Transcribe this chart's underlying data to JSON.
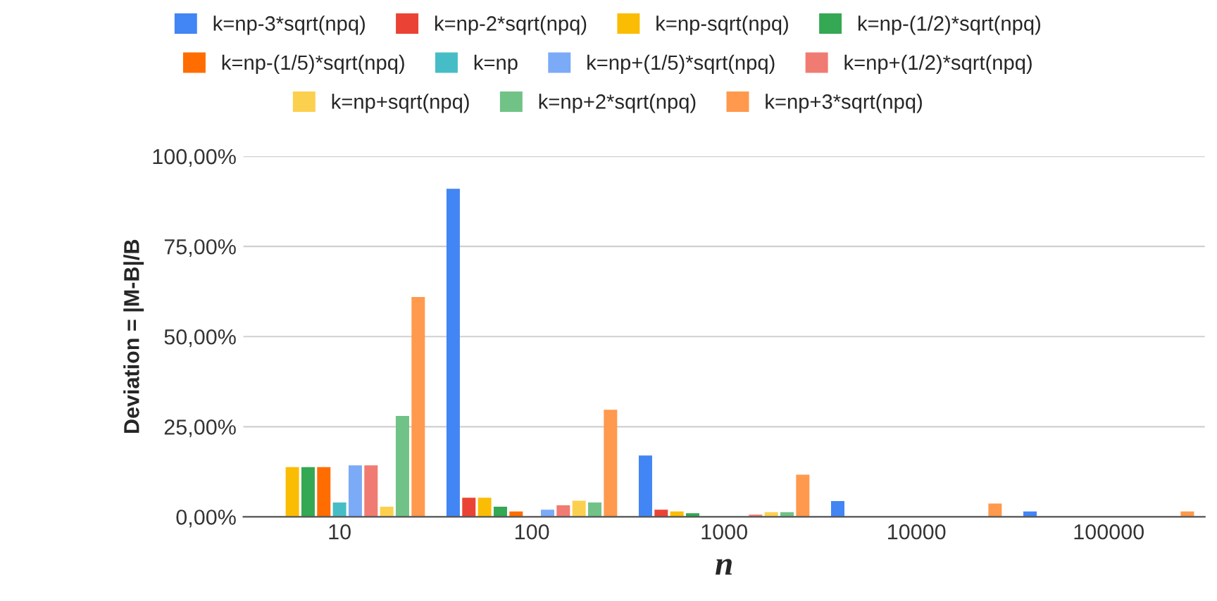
{
  "chart_data": {
    "type": "bar",
    "xlabel": "n",
    "ylabel": "Deviation = |M-B|/B",
    "categories": [
      "10",
      "100",
      "1000",
      "10000",
      "100000"
    ],
    "ylim": [
      0,
      100
    ],
    "yticks": [
      {
        "value": 0,
        "label": "0,00%"
      },
      {
        "value": 25,
        "label": "25,00%"
      },
      {
        "value": 50,
        "label": "50,00%"
      },
      {
        "value": 75,
        "label": "75,00%"
      },
      {
        "value": 100,
        "label": "100,00%"
      }
    ],
    "grid": "y",
    "legend": "top",
    "series": [
      {
        "name": "k=np-3*sqrt(npq)",
        "color": "#4285f4",
        "values": [
          null,
          91,
          17,
          4.4,
          1.5
        ]
      },
      {
        "name": "k=np-2*sqrt(npq)",
        "color": "#ea4335",
        "values": [
          null,
          5.3,
          2,
          null,
          null
        ]
      },
      {
        "name": "k=np-sqrt(npq)",
        "color": "#fbbc04",
        "values": [
          13.8,
          5.3,
          1.5,
          null,
          null
        ]
      },
      {
        "name": "k=np-(1/2)*sqrt(npq)",
        "color": "#34a853",
        "values": [
          13.8,
          2.8,
          1,
          null,
          null
        ]
      },
      {
        "name": "k=np-(1/5)*sqrt(npq)",
        "color": "#ff6d01",
        "values": [
          13.8,
          1.5,
          null,
          null,
          null
        ]
      },
      {
        "name": "k=np",
        "color": "#46bdc6",
        "values": [
          4,
          null,
          null,
          null,
          null
        ]
      },
      {
        "name": "k=np+(1/5)*sqrt(npq)",
        "color": "#7baaf7",
        "values": [
          14.3,
          2,
          null,
          null,
          null
        ]
      },
      {
        "name": "k=np+(1/2)*sqrt(npq)",
        "color": "#f07b72",
        "values": [
          14.3,
          3.2,
          0.6,
          null,
          null
        ]
      },
      {
        "name": "k=np+sqrt(npq)",
        "color": "#fcd04f",
        "values": [
          2.8,
          4.5,
          1.3,
          null,
          null
        ]
      },
      {
        "name": "k=np+2*sqrt(npq)",
        "color": "#71c287",
        "values": [
          28,
          4,
          1.3,
          null,
          null
        ]
      },
      {
        "name": "k=np+3*sqrt(npq)",
        "color": "#ff994d",
        "values": [
          61,
          29.7,
          11.7,
          3.7,
          1.5
        ]
      }
    ]
  }
}
